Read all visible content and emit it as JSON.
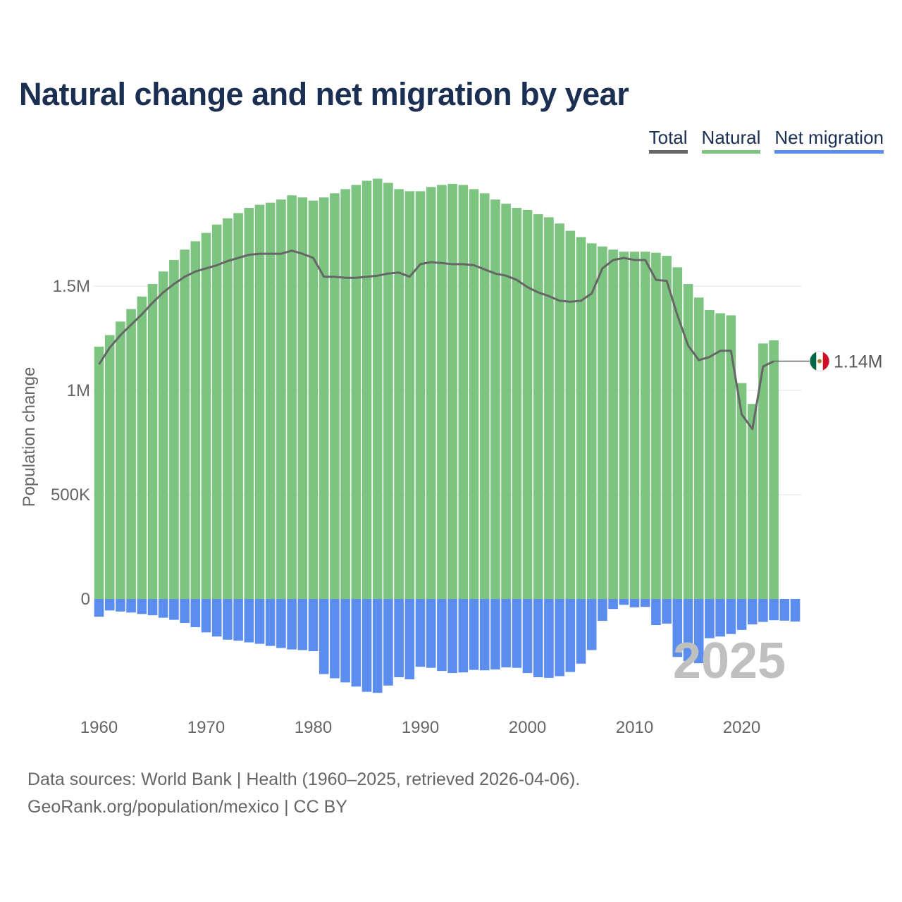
{
  "chart_data": {
    "type": "bar",
    "title": "Natural change and net migration by year",
    "xlabel": "",
    "ylabel": "Population change",
    "ylim": [
      -500000,
      2000000
    ],
    "x_ticks": [
      1960,
      1970,
      1980,
      1990,
      2000,
      2010,
      2020
    ],
    "x_tick_labels": [
      "1960",
      "1970",
      "1980",
      "1990",
      "2000",
      "2010",
      "2020"
    ],
    "y_ticks": [
      0,
      500000,
      1000000,
      1500000
    ],
    "y_tick_labels": [
      "0",
      "500K",
      "1M",
      "1.5M"
    ],
    "grid": "horizontal",
    "legend": [
      "Total",
      "Natural",
      "Net migration"
    ],
    "years": [
      1960,
      1961,
      1962,
      1963,
      1964,
      1965,
      1966,
      1967,
      1968,
      1969,
      1970,
      1971,
      1972,
      1973,
      1974,
      1975,
      1976,
      1977,
      1978,
      1979,
      1980,
      1981,
      1982,
      1983,
      1984,
      1985,
      1986,
      1987,
      1988,
      1989,
      1990,
      1991,
      1992,
      1993,
      1994,
      1995,
      1996,
      1997,
      1998,
      1999,
      2000,
      2001,
      2002,
      2003,
      2004,
      2005,
      2006,
      2007,
      2008,
      2009,
      2010,
      2011,
      2012,
      2013,
      2014,
      2015,
      2016,
      2017,
      2018,
      2019,
      2020,
      2021,
      2022,
      2023,
      2024,
      2025
    ],
    "series": [
      {
        "name": "Natural",
        "color": "#7cc47f",
        "values": [
          1210000,
          1265000,
          1330000,
          1390000,
          1450000,
          1510000,
          1570000,
          1625000,
          1675000,
          1715000,
          1755000,
          1795000,
          1825000,
          1850000,
          1875000,
          1890000,
          1900000,
          1915000,
          1935000,
          1925000,
          1910000,
          1925000,
          1945000,
          1965000,
          1985000,
          2005000,
          2015000,
          1995000,
          1965000,
          1955000,
          1955000,
          1975000,
          1985000,
          1990000,
          1985000,
          1965000,
          1945000,
          1915000,
          1895000,
          1875000,
          1865000,
          1845000,
          1830000,
          1800000,
          1765000,
          1735000,
          1705000,
          1690000,
          1675000,
          1665000,
          1665000,
          1665000,
          1660000,
          1645000,
          1590000,
          1510000,
          1445000,
          1385000,
          1370000,
          1360000,
          1035000,
          935000,
          1225000,
          1240000,
          null,
          null
        ]
      },
      {
        "name": "Net migration",
        "color": "#5b8def",
        "values": [
          -85000,
          -55000,
          -60000,
          -65000,
          -72000,
          -78000,
          -90000,
          -100000,
          -115000,
          -135000,
          -160000,
          -180000,
          -195000,
          -200000,
          -208000,
          -215000,
          -225000,
          -235000,
          -242000,
          -245000,
          -250000,
          -360000,
          -380000,
          -400000,
          -420000,
          -445000,
          -450000,
          -415000,
          -375000,
          -385000,
          -325000,
          -330000,
          -345000,
          -355000,
          -352000,
          -340000,
          -342000,
          -338000,
          -328000,
          -330000,
          -355000,
          -375000,
          -378000,
          -370000,
          -350000,
          -310000,
          -245000,
          -105000,
          -48000,
          -28000,
          -40000,
          -38000,
          -125000,
          -118000,
          -278000,
          -298000,
          -308000,
          -188000,
          -180000,
          -168000,
          -148000,
          -122000,
          -110000,
          -102000,
          -104000,
          -108000
        ]
      },
      {
        "name": "Total",
        "color": "#666666",
        "values": [
          1125000,
          1205000,
          1265000,
          1315000,
          1365000,
          1420000,
          1470000,
          1510000,
          1545000,
          1570000,
          1585000,
          1600000,
          1620000,
          1635000,
          1650000,
          1655000,
          1655000,
          1655000,
          1670000,
          1655000,
          1635000,
          1545000,
          1545000,
          1540000,
          1540000,
          1545000,
          1550000,
          1560000,
          1565000,
          1545000,
          1605000,
          1615000,
          1610000,
          1605000,
          1605000,
          1600000,
          1580000,
          1560000,
          1550000,
          1530000,
          1495000,
          1470000,
          1452000,
          1430000,
          1425000,
          1430000,
          1465000,
          1585000,
          1625000,
          1635000,
          1625000,
          1625000,
          1530000,
          1525000,
          1360000,
          1215000,
          1145000,
          1160000,
          1190000,
          1190000,
          885000,
          815000,
          1115000,
          1140000,
          null,
          null
        ]
      }
    ],
    "end_label": "1.14M",
    "watermark_year": "2025"
  },
  "legend_labels": {
    "total": "Total",
    "natural": "Natural",
    "migration": "Net migration"
  },
  "footer": {
    "source": "Data sources: World Bank | Health (1960–2025, retrieved 2026-04-06).",
    "credit": "GeoRank.org/population/mexico | CC BY"
  },
  "colors": {
    "title": "#1b2f52",
    "natural": "#7cc47f",
    "migration": "#5b8def",
    "total": "#666666",
    "watermark": "#c0c0c0"
  },
  "icons": {
    "end_marker": "mexico-flag-icon"
  }
}
